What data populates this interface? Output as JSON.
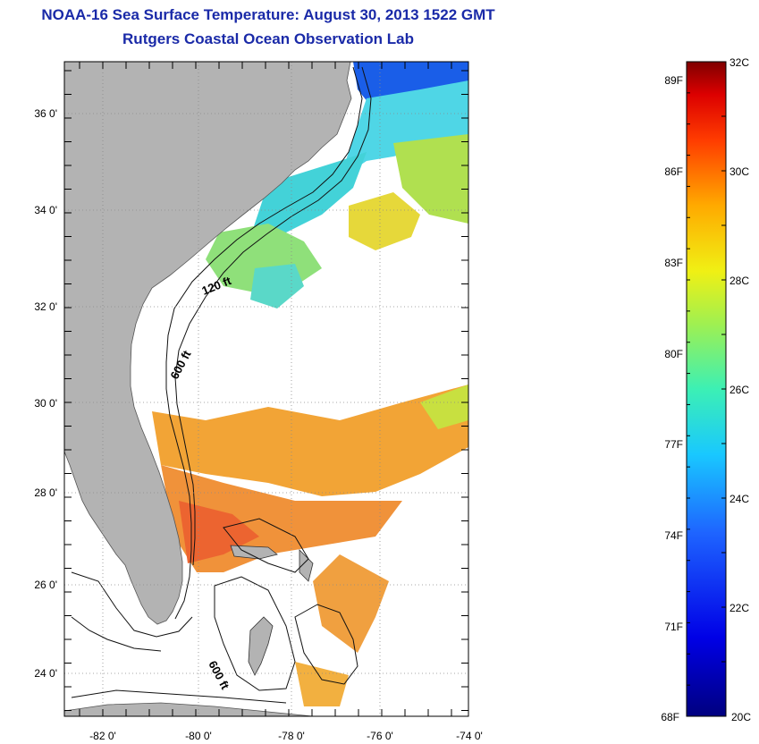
{
  "header": {
    "title": "NOAA-16 Sea Surface Temperature:  August 30, 2013 1522 GMT",
    "subtitle": "Rutgers Coastal Ocean Observation Lab"
  },
  "map": {
    "lat_labels": [
      "36 0'",
      "34 0'",
      "32 0'",
      "30 0'",
      "28 0'",
      "26 0'",
      "24 0'"
    ],
    "lon_labels": [
      "-82 0'",
      "-80 0'",
      "-78 0'",
      "-76 0'",
      "-74 0'"
    ],
    "contour_labels": [
      "120 ft",
      "600 ft",
      "600 ft"
    ],
    "colors": {
      "land": "#b3b3b3",
      "water_nodata": "#ffffff",
      "grid": "#8a8a8a"
    }
  },
  "colorbar": {
    "celsius_labels": [
      "32C",
      "30C",
      "28C",
      "26C",
      "24C",
      "22C",
      "20C"
    ],
    "fahrenheit_labels": [
      "89F",
      "86F",
      "83F",
      "80F",
      "77F",
      "74F",
      "71F",
      "68F"
    ]
  }
}
